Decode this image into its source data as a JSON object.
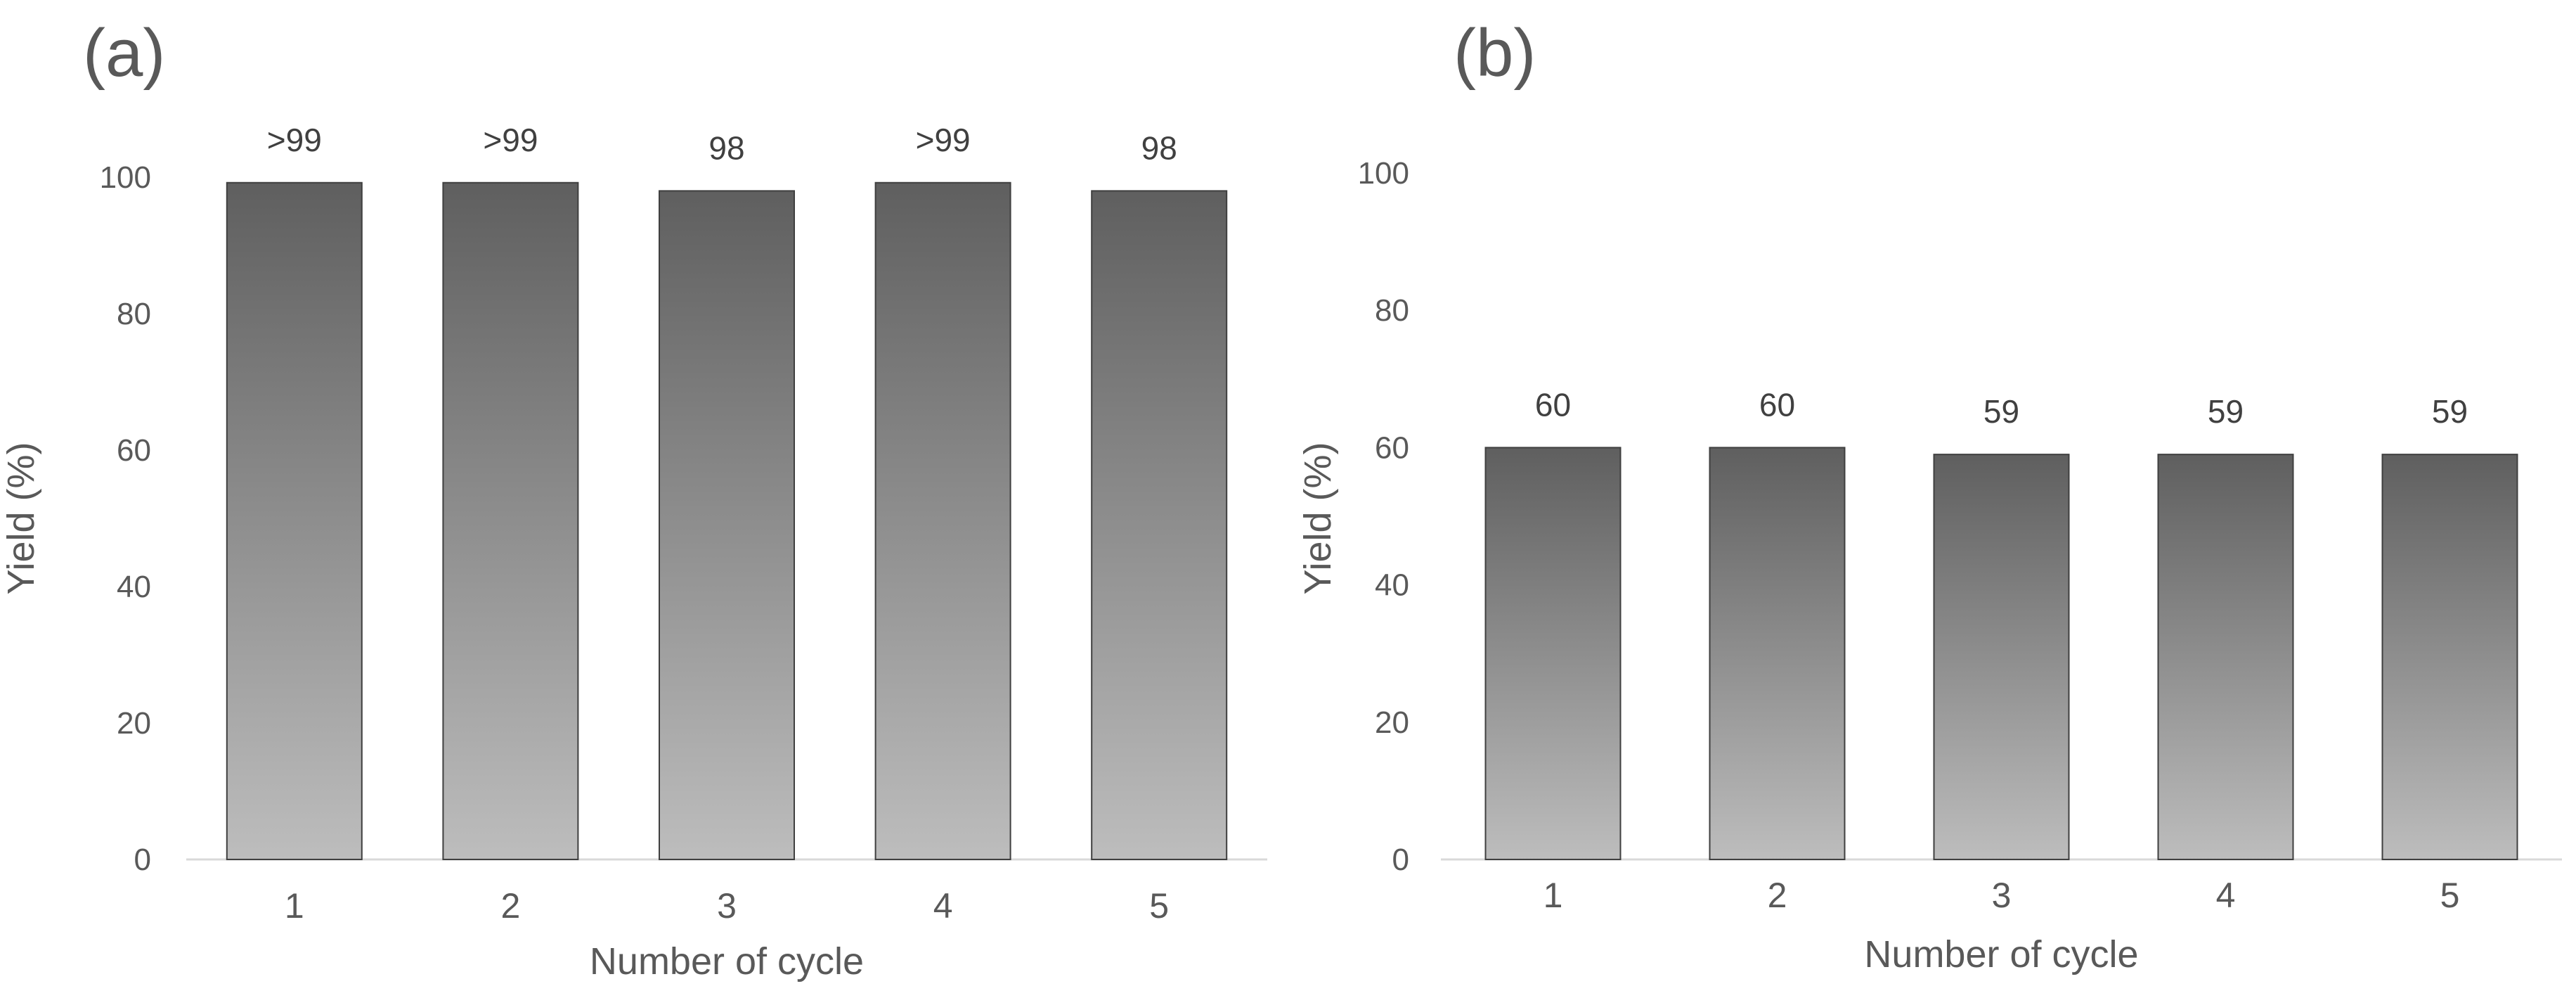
{
  "chart_data": [
    {
      "panel": "(a)",
      "type": "bar",
      "categories": [
        "1",
        "2",
        "3",
        "4",
        "5"
      ],
      "values": [
        99.2,
        99.2,
        98,
        99.2,
        98
      ],
      "data_labels": [
        ">99",
        ">99",
        "98",
        ">99",
        "98"
      ],
      "xlabel": "Number of cycle",
      "ylabel": "Yield (%)",
      "ylim": [
        0,
        100
      ],
      "yticks": [
        "0",
        "20",
        "40",
        "60",
        "80",
        "100"
      ],
      "grid": false,
      "legend": "none"
    },
    {
      "panel": "(b)",
      "type": "bar",
      "categories": [
        "1",
        "2",
        "3",
        "4",
        "5"
      ],
      "values": [
        60,
        60,
        59,
        59,
        59
      ],
      "data_labels": [
        "60",
        "60",
        "59",
        "59",
        "59"
      ],
      "xlabel": "Number of cycle",
      "ylabel": "Yield (%)",
      "ylim": [
        0,
        100
      ],
      "yticks": [
        "0",
        "20",
        "40",
        "60",
        "80",
        "100"
      ],
      "grid": false,
      "legend": "none"
    }
  ],
  "colors": {
    "bar_top": "#5f5f5f",
    "bar_bottom": "#bdbdbd",
    "bar_outline": "#3f3f3f",
    "text": "#595959",
    "axis": "#d9d9d9"
  }
}
